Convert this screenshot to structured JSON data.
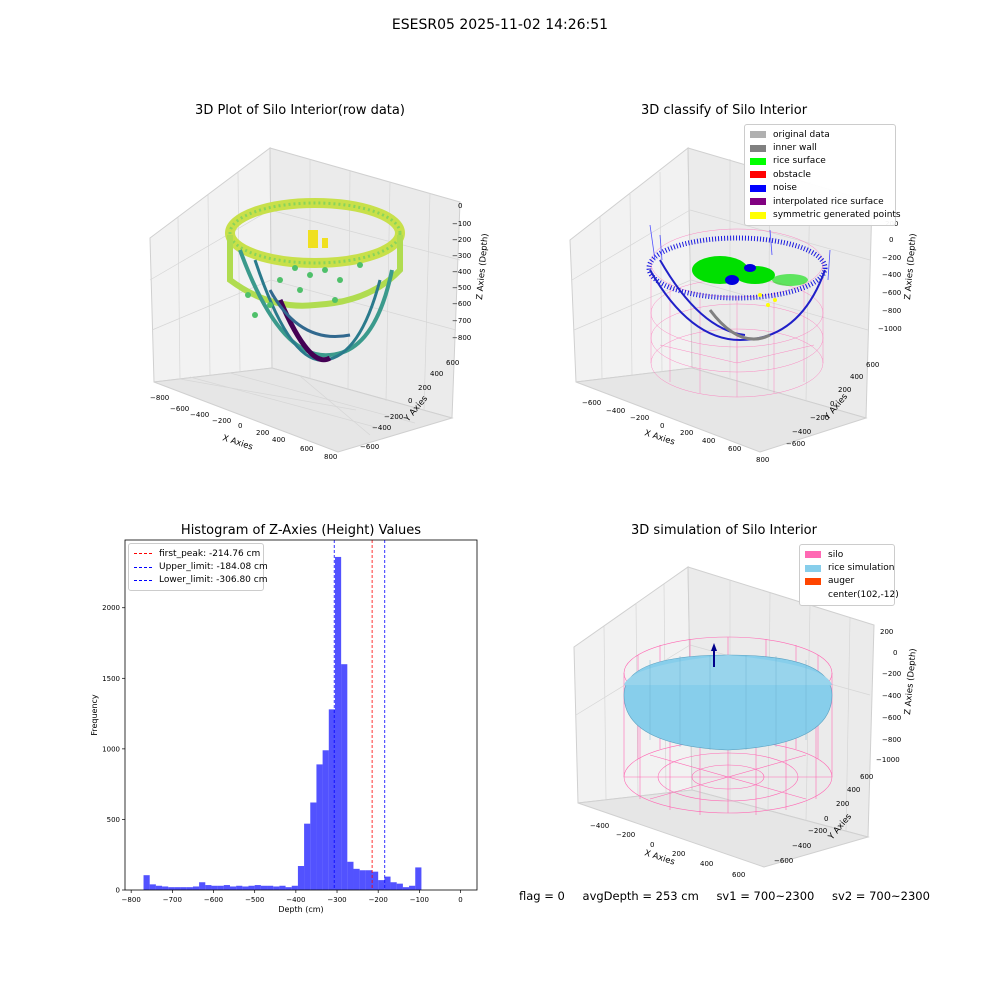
{
  "suptitle": "ESESR05 2025-11-02 14:26:51",
  "panels": {
    "raw": {
      "title": "3D Plot of Silo Interior(row data)",
      "xlabel": "X Axies",
      "ylabel": "Y Axies",
      "zlabel": "Z Axies (Depth)",
      "xticks": [
        "−800",
        "−600",
        "−400",
        "−200",
        "0",
        "200",
        "400",
        "600",
        "800"
      ],
      "yticks": [
        "−600",
        "−400",
        "−200",
        "0",
        "200",
        "400",
        "600"
      ],
      "zticks": [
        "0",
        "−100",
        "−200",
        "−300",
        "−400",
        "−500",
        "−600",
        "−700",
        "−800"
      ]
    },
    "classify": {
      "title": "3D classify of Silo Interior",
      "xlabel": "X Axies",
      "ylabel": "Y Axies",
      "zlabel": "Z Axies (Depth)",
      "xticks": [
        "−600",
        "−400",
        "−200",
        "0",
        "200",
        "400",
        "600",
        "800"
      ],
      "yticks": [
        "−600",
        "−400",
        "−200",
        "0",
        "200",
        "400",
        "600"
      ],
      "zticks": [
        "200",
        "0",
        "−200",
        "−400",
        "−600",
        "−800",
        "−1000"
      ],
      "legend": [
        {
          "label": "original data",
          "color": "#b0b0b0"
        },
        {
          "label": "inner wall",
          "color": "#808080"
        },
        {
          "label": "rice surface",
          "color": "#00ff00"
        },
        {
          "label": "obstacle",
          "color": "#ff0000"
        },
        {
          "label": "noise",
          "color": "#0000ff"
        },
        {
          "label": "interpolated rice surface",
          "color": "#800080"
        },
        {
          "label": "symmetric generated points",
          "color": "#ffff00"
        }
      ]
    },
    "simulation": {
      "title": "3D simulation of Silo Interior",
      "xlabel": "X Axies",
      "ylabel": "Y Axies",
      "zlabel": "Z Axies (Depth)",
      "xticks": [
        "−400",
        "−200",
        "0",
        "200",
        "400",
        "600"
      ],
      "yticks": [
        "−600",
        "−400",
        "−200",
        "0",
        "200",
        "400",
        "600"
      ],
      "zticks": [
        "200",
        "0",
        "−200",
        "−400",
        "−600",
        "−800",
        "−1000"
      ],
      "legend": [
        {
          "label": "silo",
          "color": "#ff69b4"
        },
        {
          "label": "rice simulation",
          "color": "#87ceeb"
        },
        {
          "label": "auger",
          "color": "#ff4500"
        },
        {
          "label": "center(102,-12)",
          "color": ""
        }
      ]
    }
  },
  "status": {
    "flag": "flag = 0",
    "avgdepth": "avgDepth = 253 cm",
    "sv1": "sv1 = 700~2300",
    "sv2": "sv2 = 700~2300"
  },
  "chart_data": {
    "type": "bar",
    "title": "Histogram of Z-Axies (Height) Values",
    "xlabel": "Depth (cm)",
    "ylabel": "Frequency",
    "xlim": [
      -815,
      40
    ],
    "ylim": [
      0,
      2480
    ],
    "xticks": [
      -800,
      -700,
      -600,
      -500,
      -400,
      -300,
      -200,
      -100,
      0
    ],
    "yticks": [
      0,
      500,
      1000,
      1500,
      2000
    ],
    "bar_color": "#0000ff",
    "bins_start": -770,
    "bin_width": 15,
    "values": [
      105,
      40,
      30,
      25,
      20,
      20,
      20,
      20,
      25,
      55,
      35,
      30,
      30,
      35,
      25,
      30,
      25,
      30,
      35,
      30,
      30,
      25,
      30,
      20,
      30,
      170,
      470,
      620,
      890,
      990,
      1280,
      2360,
      1600,
      200,
      150,
      140,
      140,
      130,
      70,
      95,
      55,
      45,
      20,
      30,
      160
    ],
    "lines": [
      {
        "label": "first_peak: -214.76 cm",
        "value": -214.76,
        "color": "#ff0000"
      },
      {
        "label": "Upper_limit: -184.08 cm",
        "value": -184.08,
        "color": "#0000ff"
      },
      {
        "label": "Lower_limit: -306.80 cm",
        "value": -306.8,
        "color": "#0000ff"
      }
    ]
  }
}
